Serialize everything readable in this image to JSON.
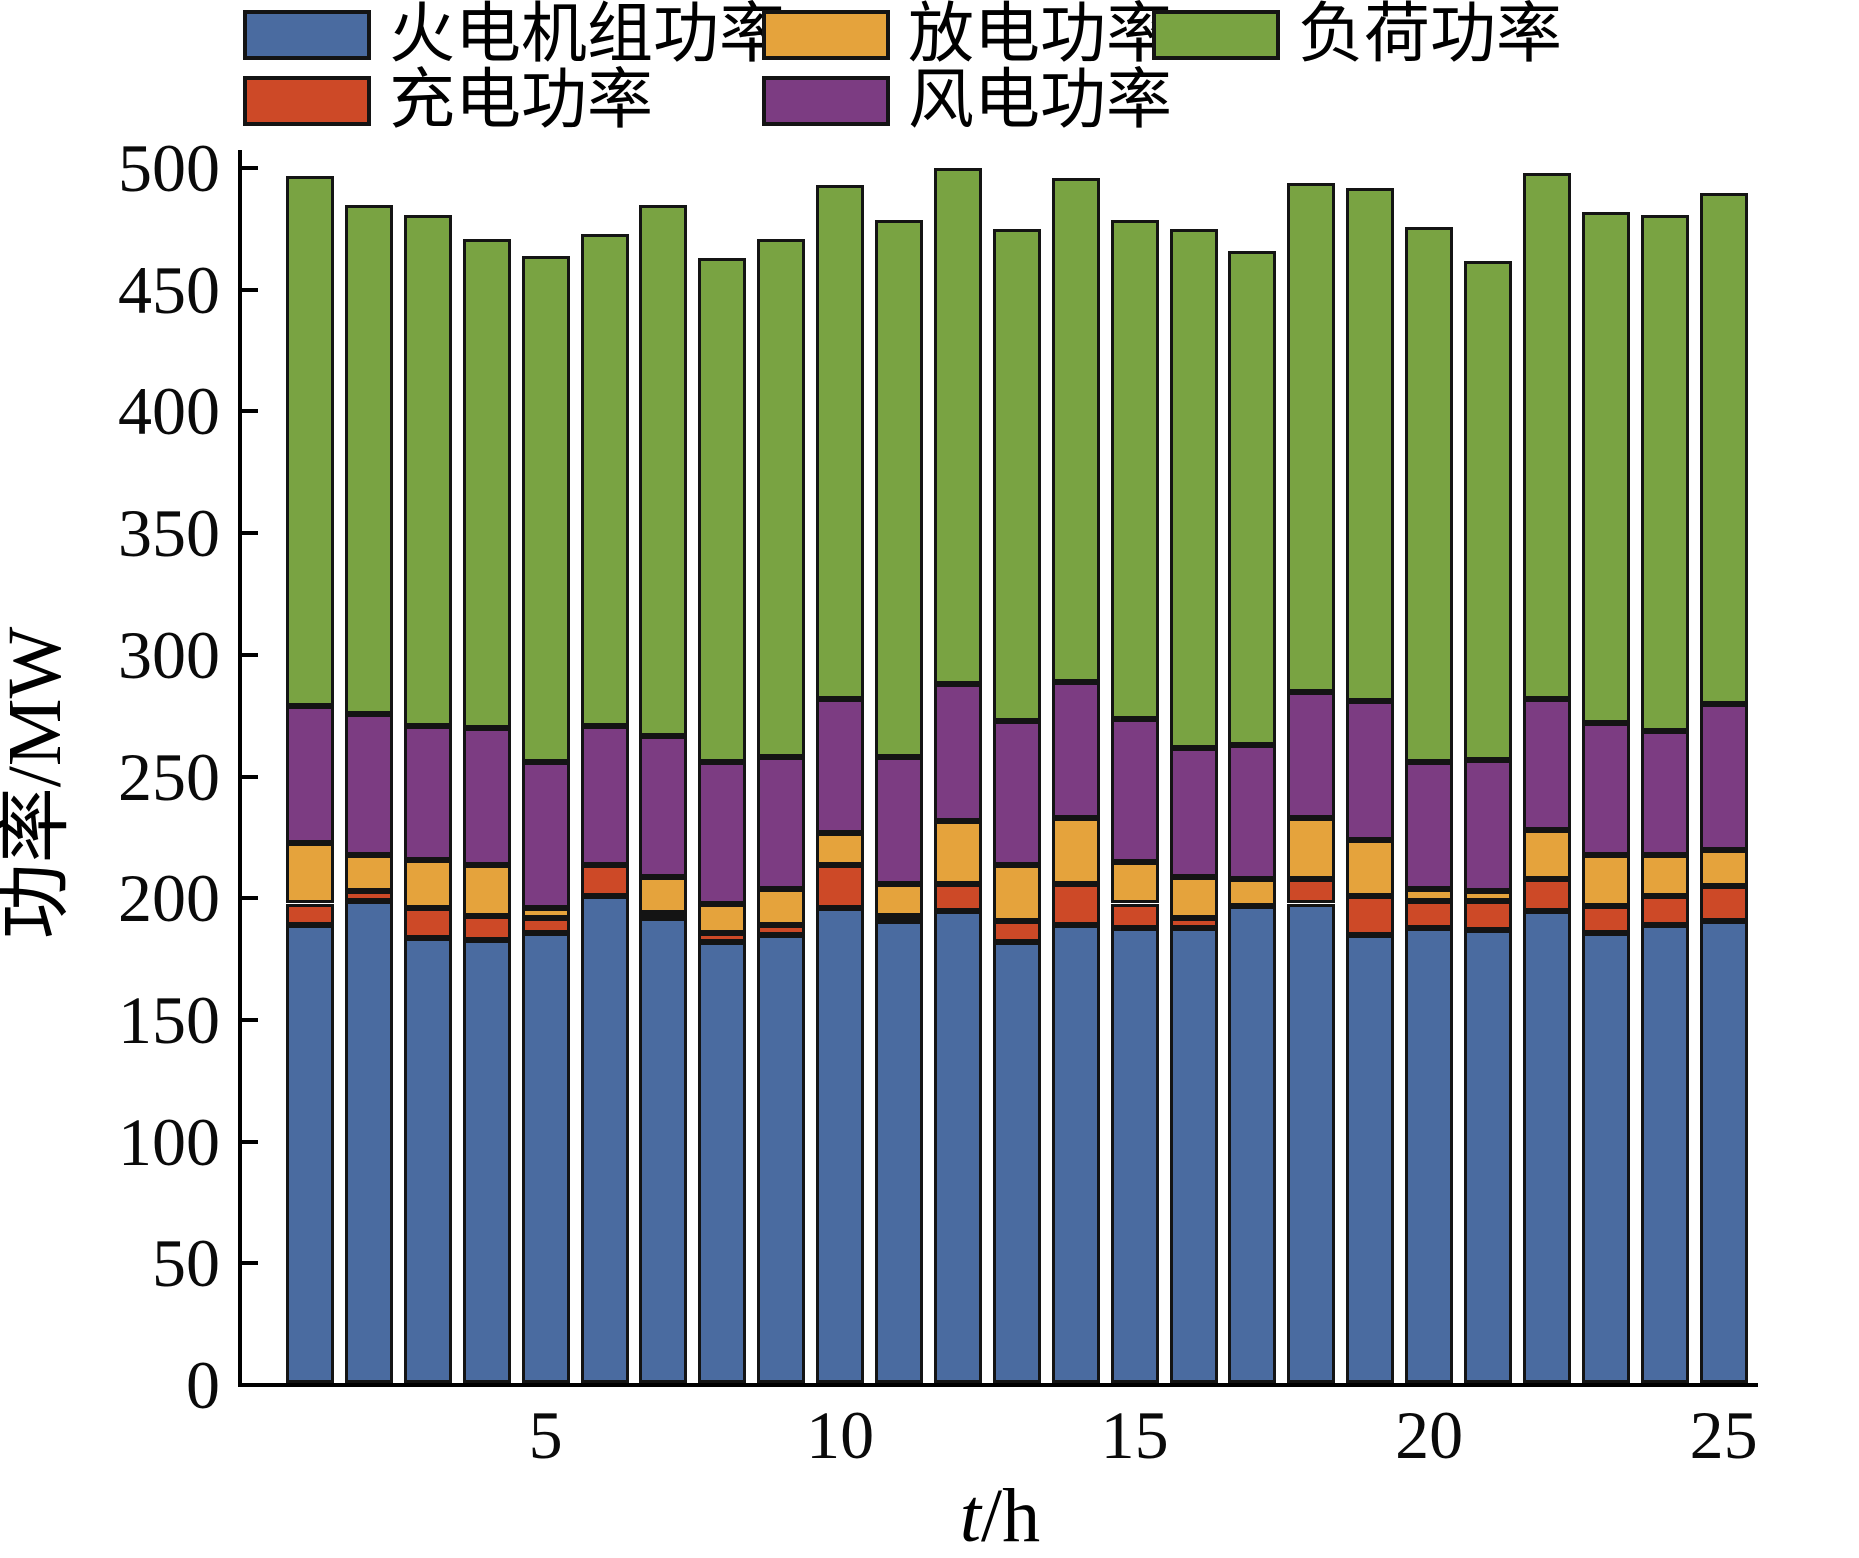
{
  "figure": {
    "ylabel": "功率/MW",
    "xlabel_italic": "t",
    "xlabel_rest": "/h"
  },
  "legend": [
    {
      "label": "火电机组功率",
      "color": "#4A6BA0"
    },
    {
      "label": "放电功率",
      "color": "#E5A33C"
    },
    {
      "label": "负荷功率",
      "color": "#79A342"
    },
    {
      "label": "充电功率",
      "color": "#CD4927"
    },
    {
      "label": "风电功率",
      "color": "#7C3C82"
    }
  ],
  "chart_data": {
    "type": "bar",
    "stacked": true,
    "title": "",
    "xlabel": "t/h",
    "ylabel": "功率/MW",
    "x": [
      1,
      2,
      3,
      4,
      5,
      6,
      7,
      8,
      9,
      10,
      11,
      12,
      13,
      14,
      15,
      16,
      17,
      18,
      19,
      20,
      21,
      22,
      23,
      24,
      25
    ],
    "xticks": [
      5,
      10,
      15,
      20,
      25
    ],
    "yticks": [
      0,
      50,
      100,
      150,
      200,
      250,
      300,
      350,
      400,
      450,
      500
    ],
    "ylim": [
      0,
      500
    ],
    "grid": false,
    "legend_position": "top",
    "unit": "MW",
    "series": [
      {
        "name": "火电机组功率",
        "color": "#4A6BA0",
        "values": [
          188,
          198,
          183,
          182,
          185,
          200,
          191,
          181,
          184,
          195,
          190,
          194,
          181,
          188,
          187,
          187,
          196,
          197,
          184,
          187,
          186,
          194,
          185,
          188,
          190
        ]
      },
      {
        "name": "充电功率",
        "color": "#CD4927",
        "values": [
          9,
          4,
          12,
          10,
          6,
          13,
          2,
          4,
          4,
          18,
          2,
          11,
          9,
          17,
          10,
          4,
          0,
          10,
          16,
          11,
          12,
          13,
          11,
          12,
          14
        ]
      },
      {
        "name": "放电功率",
        "color": "#E5A33C",
        "values": [
          25,
          15,
          20,
          21,
          4,
          0,
          15,
          12,
          15,
          13,
          13,
          26,
          23,
          27,
          17,
          17,
          11,
          25,
          23,
          5,
          4,
          20,
          21,
          17,
          15
        ]
      },
      {
        "name": "风电功率",
        "color": "#7C3C82",
        "values": [
          56,
          58,
          55,
          56,
          60,
          57,
          58,
          58,
          54,
          55,
          52,
          56,
          59,
          56,
          59,
          53,
          55,
          52,
          57,
          52,
          54,
          54,
          54,
          51,
          60
        ]
      },
      {
        "name": "负荷功率",
        "color": "#79A342",
        "values": [
          218,
          209,
          210,
          201,
          208,
          202,
          218,
          207,
          213,
          211,
          221,
          212,
          202,
          207,
          205,
          213,
          203,
          209,
          211,
          220,
          205,
          216,
          210,
          212,
          210
        ]
      }
    ],
    "stack_order_bottom_to_top": [
      "火电机组功率",
      "充电功率",
      "放电功率",
      "风电功率",
      "负荷功率"
    ],
    "totals": [
      496,
      484,
      480,
      470,
      463,
      472,
      484,
      462,
      470,
      492,
      478,
      499,
      474,
      495,
      478,
      474,
      465,
      493,
      491,
      475,
      461,
      497,
      481,
      480,
      489
    ]
  }
}
